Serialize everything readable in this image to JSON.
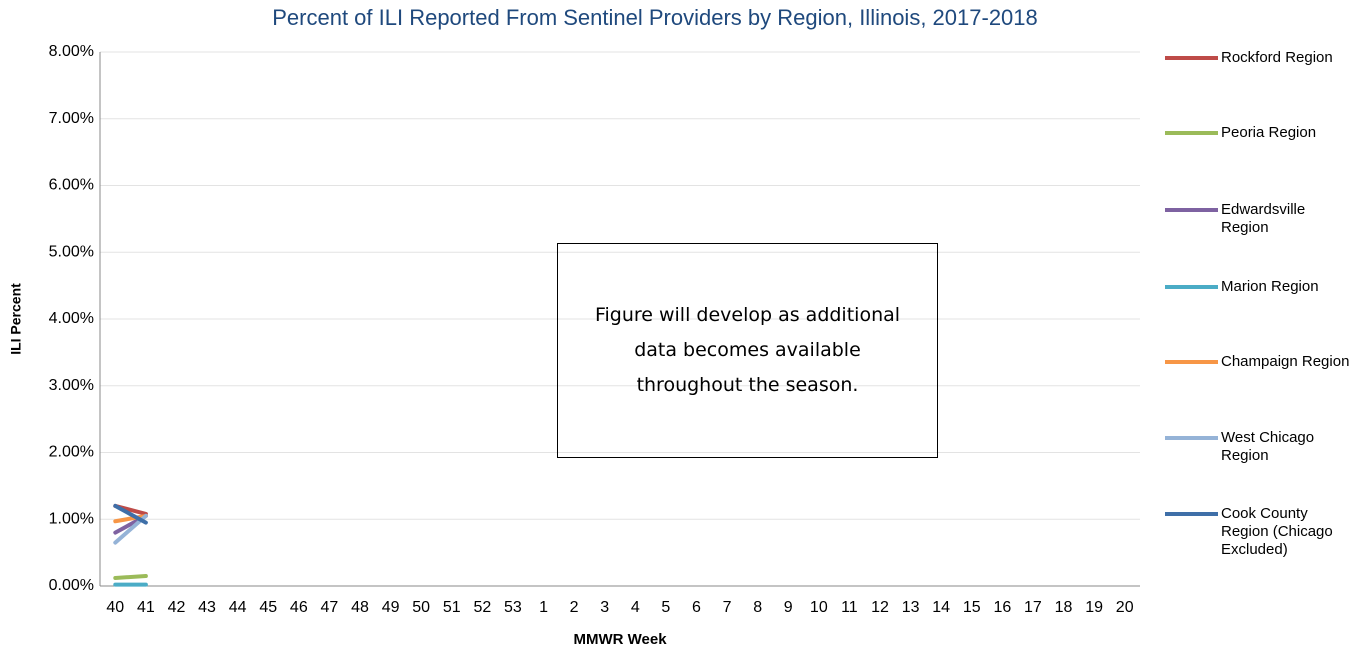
{
  "chart_data": {
    "type": "line",
    "title": "Percent of ILI Reported From Sentinel Providers by Region, Illinois, 2017-2018",
    "x_label": "MMWR Week",
    "y_label": "ILI Percent",
    "annotation": "Figure will develop as additional data becomes available throughout the season.",
    "categories": [
      "40",
      "41",
      "42",
      "43",
      "44",
      "45",
      "46",
      "47",
      "48",
      "49",
      "50",
      "51",
      "52",
      "53",
      "1",
      "2",
      "3",
      "4",
      "5",
      "6",
      "7",
      "8",
      "9",
      "10",
      "11",
      "12",
      "13",
      "14",
      "15",
      "16",
      "17",
      "18",
      "19",
      "20"
    ],
    "ylim": [
      0,
      8
    ],
    "yticks": [
      {
        "value": 0,
        "label": "0.00%"
      },
      {
        "value": 1,
        "label": "1.00%"
      },
      {
        "value": 2,
        "label": "2.00%"
      },
      {
        "value": 3,
        "label": "3.00%"
      },
      {
        "value": 4,
        "label": "4.00%"
      },
      {
        "value": 5,
        "label": "5.00%"
      },
      {
        "value": 6,
        "label": "6.00%"
      },
      {
        "value": 7,
        "label": "7.00%"
      },
      {
        "value": 8,
        "label": "8.00%"
      }
    ],
    "grid": true,
    "legend": "right",
    "series": [
      {
        "name": "Rockford Region",
        "color": "#be4b48",
        "values": [
          1.2,
          1.08,
          null,
          null,
          null,
          null,
          null,
          null,
          null,
          null,
          null,
          null,
          null,
          null,
          null,
          null,
          null,
          null,
          null,
          null,
          null,
          null,
          null,
          null,
          null,
          null,
          null,
          null,
          null,
          null,
          null,
          null,
          null,
          null
        ]
      },
      {
        "name": "Peoria Region",
        "color": "#9bbb59",
        "values": [
          0.12,
          0.15,
          null,
          null,
          null,
          null,
          null,
          null,
          null,
          null,
          null,
          null,
          null,
          null,
          null,
          null,
          null,
          null,
          null,
          null,
          null,
          null,
          null,
          null,
          null,
          null,
          null,
          null,
          null,
          null,
          null,
          null,
          null,
          null
        ]
      },
      {
        "name": "Edwardsville Region",
        "color": "#7e62a1",
        "values": [
          0.8,
          1.05,
          null,
          null,
          null,
          null,
          null,
          null,
          null,
          null,
          null,
          null,
          null,
          null,
          null,
          null,
          null,
          null,
          null,
          null,
          null,
          null,
          null,
          null,
          null,
          null,
          null,
          null,
          null,
          null,
          null,
          null,
          null,
          null
        ]
      },
      {
        "name": "Marion Region",
        "color": "#4bacc6",
        "values": [
          0.02,
          0.02,
          null,
          null,
          null,
          null,
          null,
          null,
          null,
          null,
          null,
          null,
          null,
          null,
          null,
          null,
          null,
          null,
          null,
          null,
          null,
          null,
          null,
          null,
          null,
          null,
          null,
          null,
          null,
          null,
          null,
          null,
          null,
          null
        ]
      },
      {
        "name": "Champaign Region",
        "color": "#f79646",
        "values": [
          0.97,
          1.05,
          null,
          null,
          null,
          null,
          null,
          null,
          null,
          null,
          null,
          null,
          null,
          null,
          null,
          null,
          null,
          null,
          null,
          null,
          null,
          null,
          null,
          null,
          null,
          null,
          null,
          null,
          null,
          null,
          null,
          null,
          null,
          null
        ]
      },
      {
        "name": "West Chicago Region",
        "color": "#95b3d7",
        "values": [
          0.65,
          1.05,
          null,
          null,
          null,
          null,
          null,
          null,
          null,
          null,
          null,
          null,
          null,
          null,
          null,
          null,
          null,
          null,
          null,
          null,
          null,
          null,
          null,
          null,
          null,
          null,
          null,
          null,
          null,
          null,
          null,
          null,
          null,
          null
        ]
      },
      {
        "name": "Cook County Region (Chicago Excluded)",
        "color": "#3f6fa8",
        "values": [
          1.2,
          0.95,
          null,
          null,
          null,
          null,
          null,
          null,
          null,
          null,
          null,
          null,
          null,
          null,
          null,
          null,
          null,
          null,
          null,
          null,
          null,
          null,
          null,
          null,
          null,
          null,
          null,
          null,
          null,
          null,
          null,
          null,
          null,
          null
        ]
      }
    ]
  }
}
